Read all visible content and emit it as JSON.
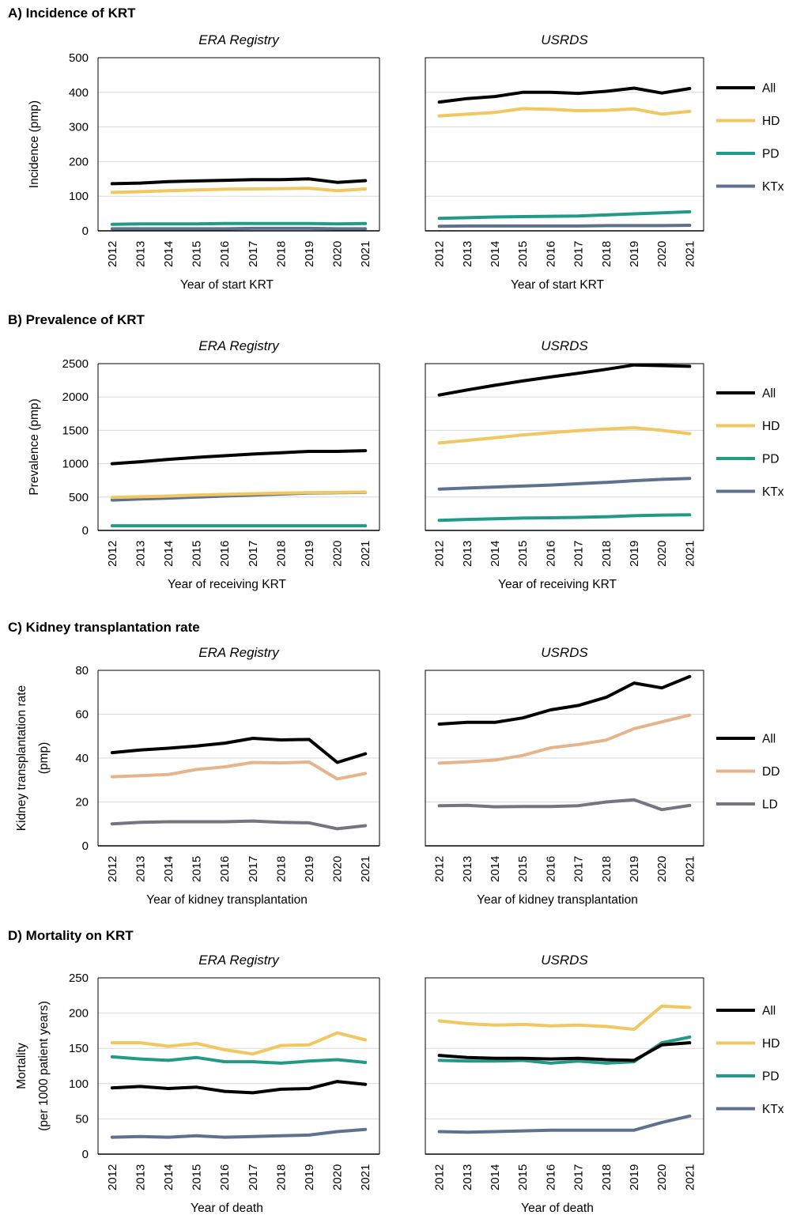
{
  "colors": {
    "All": "#000000",
    "HD": "#f0c760",
    "PD": "#219a86",
    "KTx": "#5e7290",
    "DD": "#e6b48b",
    "LD": "#757581"
  },
  "panels": [
    {
      "label": "A) Incidence of KRT",
      "ylabel": [
        "Incidence (pmp)"
      ],
      "xlabel": "Year of start KRT",
      "legend": [
        "All",
        "HD",
        "PD",
        "KTx"
      ]
    },
    {
      "label": "B) Prevalence of KRT",
      "ylabel": [
        "Prevalence (pmp)"
      ],
      "xlabel": "Year of receiving KRT",
      "legend": [
        "All",
        "HD",
        "PD",
        "KTx"
      ]
    },
    {
      "label": "C) Kidney transplantation rate",
      "ylabel": [
        "Kidney transplantation rate",
        "(pmp)"
      ],
      "xlabel": "Year of kidney transplantation",
      "legend": [
        "All",
        "DD",
        "LD"
      ]
    },
    {
      "label": "D) Mortality on KRT",
      "ylabel": [
        "Mortality",
        "(per 1000 patient years)"
      ],
      "xlabel": "Year of death",
      "legend": [
        "All",
        "HD",
        "PD",
        "KTx"
      ]
    }
  ],
  "chart_data": [
    {
      "type": "line",
      "panel": 0,
      "title": "ERA Registry",
      "x": [
        "2012",
        "2013",
        "2014",
        "2015",
        "2016",
        "2017",
        "2018",
        "2019",
        "2020",
        "2021"
      ],
      "ylim": [
        0,
        500
      ],
      "yticks": [
        0,
        100,
        200,
        300,
        400,
        500
      ],
      "grid": true,
      "series": [
        {
          "name": "All",
          "values": [
            136,
            138,
            142,
            144,
            146,
            148,
            148,
            150,
            140,
            145
          ]
        },
        {
          "name": "HD",
          "values": [
            111,
            113,
            116,
            118,
            120,
            121,
            122,
            123,
            116,
            121
          ]
        },
        {
          "name": "PD",
          "values": [
            19,
            20,
            20,
            20,
            21,
            21,
            21,
            21,
            20,
            21
          ]
        },
        {
          "name": "KTx",
          "values": [
            6,
            6,
            6,
            6,
            6,
            7,
            7,
            7,
            6,
            6
          ]
        }
      ]
    },
    {
      "type": "line",
      "panel": 0,
      "title": "USRDS",
      "x": [
        "2012",
        "2013",
        "2014",
        "2015",
        "2016",
        "2017",
        "2018",
        "2019",
        "2020",
        "2021"
      ],
      "ylim": [
        0,
        500
      ],
      "yticks": [
        0,
        100,
        200,
        300,
        400,
        500
      ],
      "grid": true,
      "series": [
        {
          "name": "All",
          "values": [
            372,
            382,
            388,
            400,
            400,
            397,
            403,
            412,
            398,
            411
          ]
        },
        {
          "name": "HD",
          "values": [
            332,
            337,
            342,
            353,
            351,
            347,
            348,
            352,
            337,
            345
          ]
        },
        {
          "name": "PD",
          "values": [
            36,
            38,
            40,
            41,
            42,
            43,
            46,
            49,
            52,
            55
          ]
        },
        {
          "name": "KTx",
          "values": [
            13,
            14,
            14,
            14,
            14,
            14,
            15,
            15,
            15,
            16
          ]
        }
      ]
    },
    {
      "type": "line",
      "panel": 1,
      "title": "ERA Registry",
      "x": [
        "2012",
        "2013",
        "2014",
        "2015",
        "2016",
        "2017",
        "2018",
        "2019",
        "2020",
        "2021"
      ],
      "ylim": [
        0,
        2500
      ],
      "yticks": [
        0,
        500,
        1000,
        1500,
        2000,
        2500
      ],
      "grid": true,
      "series": [
        {
          "name": "All",
          "values": [
            1000,
            1030,
            1065,
            1095,
            1120,
            1145,
            1165,
            1185,
            1185,
            1195
          ]
        },
        {
          "name": "HD",
          "values": [
            495,
            505,
            515,
            530,
            540,
            550,
            560,
            565,
            570,
            575
          ]
        },
        {
          "name": "PD",
          "values": [
            70,
            70,
            70,
            70,
            70,
            70,
            70,
            70,
            70,
            70
          ]
        },
        {
          "name": "KTx",
          "values": [
            455,
            470,
            485,
            500,
            515,
            530,
            545,
            560,
            565,
            570
          ]
        }
      ]
    },
    {
      "type": "line",
      "panel": 1,
      "title": "USRDS",
      "x": [
        "2012",
        "2013",
        "2014",
        "2015",
        "2016",
        "2017",
        "2018",
        "2019",
        "2020",
        "2021"
      ],
      "ylim": [
        0,
        2500
      ],
      "yticks": [
        0,
        500,
        1000,
        1500,
        2000,
        2500
      ],
      "grid": true,
      "series": [
        {
          "name": "All",
          "values": [
            2030,
            2105,
            2175,
            2240,
            2300,
            2355,
            2415,
            2480,
            2470,
            2460
          ]
        },
        {
          "name": "HD",
          "values": [
            1310,
            1350,
            1390,
            1430,
            1465,
            1495,
            1520,
            1540,
            1500,
            1450
          ]
        },
        {
          "name": "PD",
          "values": [
            150,
            165,
            175,
            185,
            190,
            195,
            205,
            220,
            230,
            235
          ]
        },
        {
          "name": "KTx",
          "values": [
            620,
            635,
            650,
            665,
            680,
            700,
            720,
            745,
            765,
            780
          ]
        }
      ]
    },
    {
      "type": "line",
      "panel": 2,
      "title": "ERA Registry",
      "x": [
        "2012",
        "2013",
        "2014",
        "2015",
        "2016",
        "2017",
        "2018",
        "2019",
        "2020",
        "2021"
      ],
      "ylim": [
        0,
        80
      ],
      "yticks": [
        0,
        20,
        40,
        60,
        80
      ],
      "grid": true,
      "series": [
        {
          "name": "All",
          "values": [
            42.5,
            43.7,
            44.5,
            45.5,
            46.8,
            49,
            48.3,
            48.5,
            38,
            42
          ]
        },
        {
          "name": "DD",
          "values": [
            31.5,
            32,
            32.5,
            34.8,
            36,
            38,
            37.8,
            38.2,
            30.5,
            33
          ]
        },
        {
          "name": "LD",
          "values": [
            10,
            10.7,
            11,
            11,
            11,
            11.3,
            10.7,
            10.5,
            7.8,
            9.2
          ]
        }
      ]
    },
    {
      "type": "line",
      "panel": 2,
      "title": "USRDS",
      "x": [
        "2012",
        "2013",
        "2014",
        "2015",
        "2016",
        "2017",
        "2018",
        "2019",
        "2020",
        "2021"
      ],
      "ylim": [
        0,
        80
      ],
      "yticks": [
        0,
        20,
        40,
        60,
        80
      ],
      "grid": true,
      "series": [
        {
          "name": "All",
          "values": [
            55.5,
            56.3,
            56.3,
            58.3,
            62,
            64,
            67.7,
            74.2,
            72,
            77.2
          ]
        },
        {
          "name": "DD",
          "values": [
            37.7,
            38.3,
            39.1,
            41.2,
            44.7,
            46.2,
            48.2,
            53.4,
            56.5,
            59.6
          ]
        },
        {
          "name": "LD",
          "values": [
            18.3,
            18.5,
            17.8,
            17.9,
            17.9,
            18.3,
            20,
            21,
            16.5,
            18.4
          ]
        }
      ]
    },
    {
      "type": "line",
      "panel": 3,
      "title": "ERA Registry",
      "x": [
        "2012",
        "2013",
        "2014",
        "2015",
        "2016",
        "2017",
        "2018",
        "2019",
        "2020",
        "2021"
      ],
      "ylim": [
        0,
        250
      ],
      "yticks": [
        0,
        50,
        100,
        150,
        200,
        250
      ],
      "grid": true,
      "series": [
        {
          "name": "All",
          "values": [
            94,
            96,
            93,
            95,
            89,
            87,
            92,
            93,
            103,
            99
          ]
        },
        {
          "name": "HD",
          "values": [
            158,
            158,
            153,
            157,
            148,
            142,
            154,
            155,
            172,
            162
          ]
        },
        {
          "name": "PD",
          "values": [
            138,
            135,
            133,
            137,
            131,
            131,
            129,
            132,
            134,
            130
          ]
        },
        {
          "name": "KTx",
          "values": [
            24,
            25,
            24,
            26,
            24,
            25,
            26,
            27,
            32,
            35
          ]
        }
      ]
    },
    {
      "type": "line",
      "panel": 3,
      "title": "USRDS",
      "x": [
        "2012",
        "2013",
        "2014",
        "2015",
        "2016",
        "2017",
        "2018",
        "2019",
        "2020",
        "2021"
      ],
      "ylim": [
        0,
        250
      ],
      "yticks": [
        0,
        50,
        100,
        150,
        200,
        250
      ],
      "grid": true,
      "series": [
        {
          "name": "All",
          "values": [
            140,
            137,
            136,
            136,
            135,
            136,
            134,
            133,
            155,
            158
          ]
        },
        {
          "name": "HD",
          "values": [
            189,
            185,
            183,
            184,
            182,
            183,
            181,
            177,
            210,
            208
          ]
        },
        {
          "name": "PD",
          "values": [
            133,
            132,
            132,
            133,
            129,
            132,
            129,
            131,
            158,
            166
          ]
        },
        {
          "name": "KTx",
          "values": [
            32,
            31,
            32,
            33,
            34,
            34,
            34,
            34,
            45,
            54
          ]
        }
      ]
    }
  ]
}
